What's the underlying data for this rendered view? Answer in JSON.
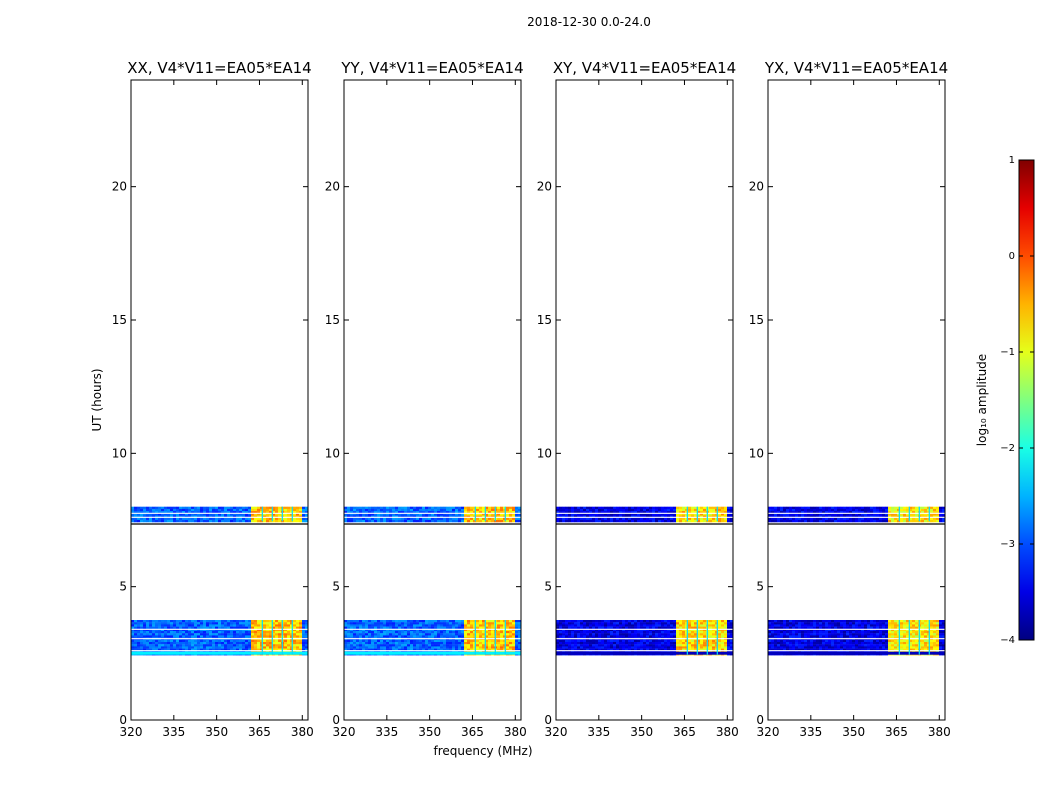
{
  "chart_data": {
    "type": "heatmap",
    "title": "2018-12-30 0.0-24.0",
    "xlabel": "frequency (MHz)",
    "ylabel": "UT (hours)",
    "xlim": [
      320,
      382
    ],
    "ylim": [
      0,
      24
    ],
    "xticks": [
      320,
      335,
      350,
      365,
      380
    ],
    "yticks": [
      0,
      5,
      10,
      15,
      20
    ],
    "panels": [
      {
        "name": "XX",
        "title": "XX, V4*V11=EA05*EA14",
        "background_level": -2.9,
        "band_level": -0.6,
        "edge_level": -2.2
      },
      {
        "name": "YY",
        "title": "YY, V4*V11=EA05*EA14",
        "background_level": -2.9,
        "band_level": -0.6,
        "edge_level": -2.2
      },
      {
        "name": "XY",
        "title": "XY, V4*V11=EA05*EA14",
        "background_level": -3.5,
        "band_level": -0.7,
        "edge_level": -3.7
      },
      {
        "name": "YX",
        "title": "YX, V4*V11=EA05*EA14",
        "background_level": -3.5,
        "band_level": -0.8,
        "edge_level": -3.7
      }
    ],
    "data_time_ranges_hours": [
      [
        2.45,
        3.75
      ],
      [
        7.45,
        8.0
      ]
    ],
    "gap_lines_hours": [
      2.6,
      3.05,
      3.4,
      7.35,
      7.6,
      7.75
    ],
    "strong_freq_band_mhz": [
      362,
      379
    ],
    "freq_gap_lines_mhz": [
      366,
      369.5,
      373,
      376.5
    ],
    "colorbar": {
      "label": "log₁₀ amplitude",
      "range": [
        -4,
        1
      ],
      "ticks": [
        "1",
        "0",
        "−1",
        "−2",
        "−3",
        "−4"
      ],
      "colormap": "jet"
    }
  }
}
